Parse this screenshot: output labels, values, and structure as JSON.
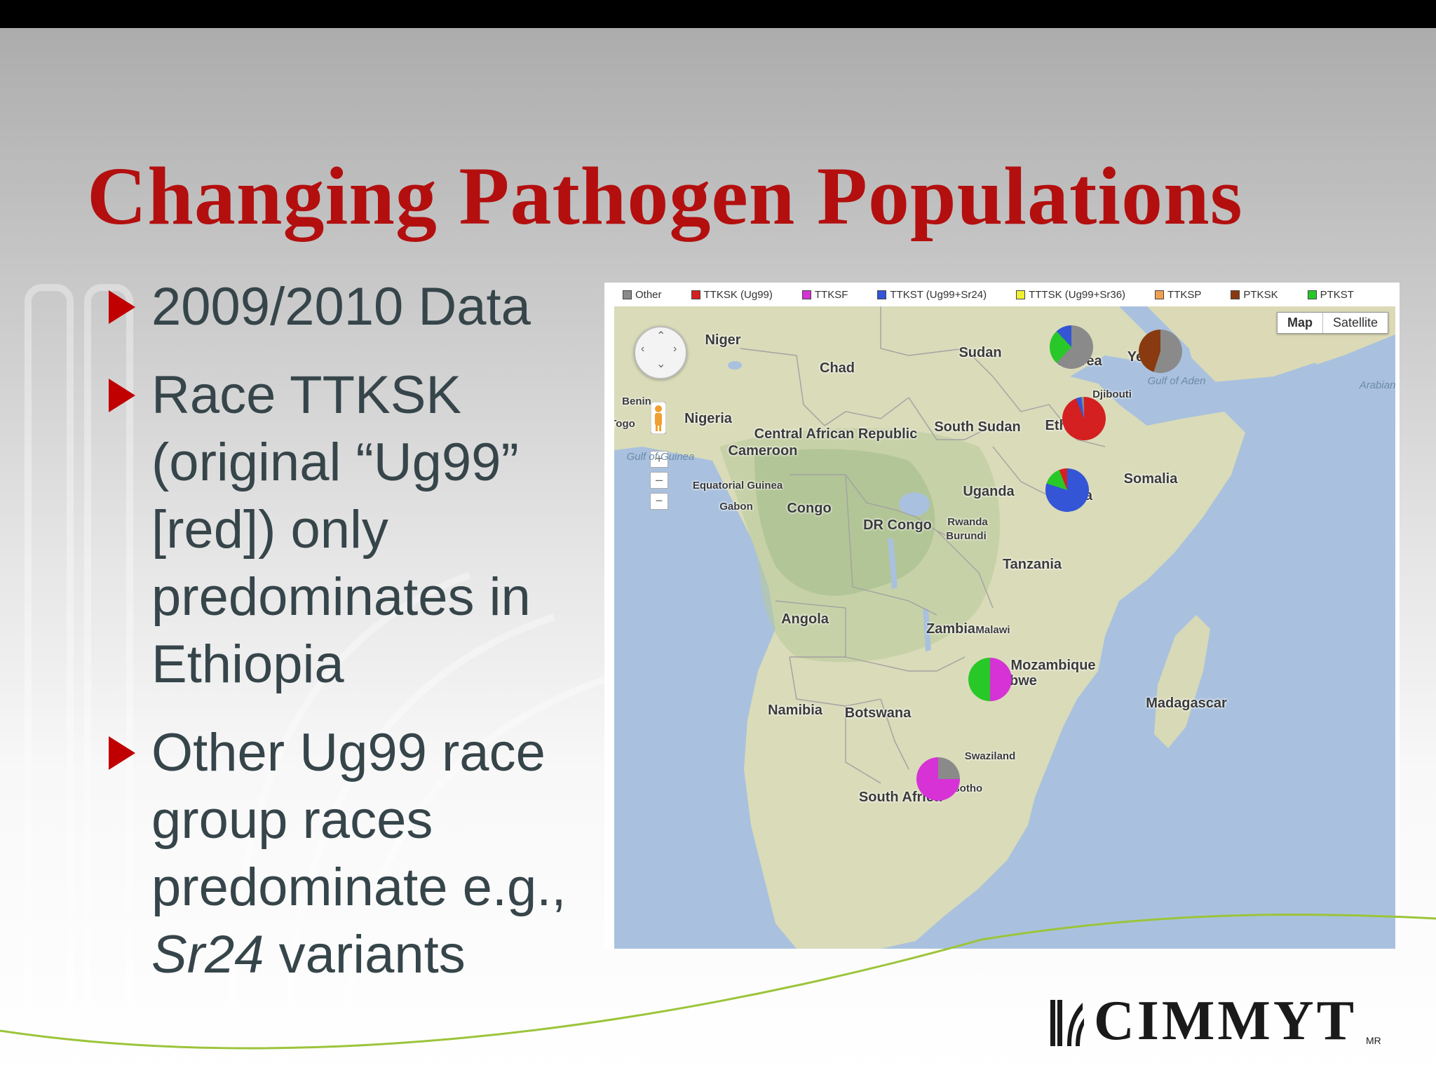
{
  "slide": {
    "title": "Changing Pathogen Populations",
    "bullets": [
      {
        "lines": [
          "2009/2010 Data"
        ]
      },
      {
        "lines": [
          "Race TTKSK",
          "(original “Ug99”",
          "[red]) only",
          "predominates in",
          "Ethiopia"
        ]
      },
      {
        "lines": [
          "Other Ug99 race",
          "group races",
          "predominate e.g.,"
        ],
        "last_italic": "Sr24",
        "last_rest": " variants"
      }
    ]
  },
  "legend": [
    {
      "label": "Other",
      "color": "#8a8a8a"
    },
    {
      "label": "TTKSK (Ug99)",
      "color": "#d42020"
    },
    {
      "label": "TTKSF",
      "color": "#d632d6"
    },
    {
      "label": "TTKST (Ug99+Sr24)",
      "color": "#3355d6"
    },
    {
      "label": "TTTSK (Ug99+Sr36)",
      "color": "#f0f030"
    },
    {
      "label": "TTKSP",
      "color": "#f0a050"
    },
    {
      "label": "PTKSK",
      "color": "#8a3a10"
    },
    {
      "label": "PTKST",
      "color": "#28c828"
    }
  ],
  "map": {
    "type_buttons": [
      "Map",
      "Satellite"
    ],
    "labels": [
      {
        "text": "Niger"
      },
      {
        "text": "Chad"
      },
      {
        "text": "Sudan"
      },
      {
        "text": "Eritrea"
      },
      {
        "text": "Djibouti"
      },
      {
        "text": "Benin"
      },
      {
        "text": "Nigeria"
      },
      {
        "text": "Togo"
      },
      {
        "text": "Central African Republic"
      },
      {
        "text": "South Sudan"
      },
      {
        "text": "Cameroon"
      },
      {
        "text": "Gulf of Guinea"
      },
      {
        "text": "Equatorial Guinea"
      },
      {
        "text": "Gabon"
      },
      {
        "text": "Congo"
      },
      {
        "text": "DR Congo"
      },
      {
        "text": "Uganda"
      },
      {
        "text": "Rwanda"
      },
      {
        "text": "Burundi"
      },
      {
        "text": "Somalia"
      },
      {
        "text": "Tanzania"
      },
      {
        "text": "Angola"
      },
      {
        "text": "Zambia"
      },
      {
        "text": "Malawi"
      },
      {
        "text": "Mozambique"
      },
      {
        "text": "Zimbabwe"
      },
      {
        "text": "Namibia"
      },
      {
        "text": "Botswana"
      },
      {
        "text": "Madagascar"
      },
      {
        "text": "Swaziland"
      },
      {
        "text": "Lesotho"
      },
      {
        "text": "South Africa"
      },
      {
        "text": "Gulf of Aden"
      },
      {
        "text": "Arabian Sea"
      },
      {
        "text": "Ethiopia"
      },
      {
        "text": "Kenya"
      },
      {
        "text": "Yemen"
      }
    ],
    "pies": [
      {
        "location": "Eritrea",
        "segments": [
          {
            "race": "Other",
            "fraction": 0.62
          },
          {
            "race": "PTKST",
            "fraction": 0.26
          },
          {
            "race": "TTKST (Ug99+Sr24)",
            "fraction": 0.12
          }
        ]
      },
      {
        "location": "Yemen",
        "segments": [
          {
            "race": "Other",
            "fraction": 0.55
          },
          {
            "race": "PTKSK",
            "fraction": 0.45
          }
        ]
      },
      {
        "location": "Ethiopia",
        "segments": [
          {
            "race": "TTKSK (Ug99)",
            "fraction": 0.94
          },
          {
            "race": "TTKST (Ug99+Sr24)",
            "fraction": 0.04
          },
          {
            "race": "Other",
            "fraction": 0.02
          }
        ]
      },
      {
        "location": "Kenya",
        "segments": [
          {
            "race": "TTKST (Ug99+Sr24)",
            "fraction": 0.8
          },
          {
            "race": "PTKST",
            "fraction": 0.14
          },
          {
            "race": "TTKSK (Ug99)",
            "fraction": 0.06
          }
        ]
      },
      {
        "location": "Zimbabwe",
        "segments": [
          {
            "race": "TTKSF",
            "fraction": 0.5
          },
          {
            "race": "PTKST",
            "fraction": 0.5
          }
        ]
      },
      {
        "location": "South Africa",
        "segments": [
          {
            "race": "Other",
            "fraction": 0.25
          },
          {
            "race": "TTKSF",
            "fraction": 0.75
          }
        ]
      }
    ]
  },
  "logo": {
    "text": "CIMMYT",
    "mark": "MR"
  }
}
